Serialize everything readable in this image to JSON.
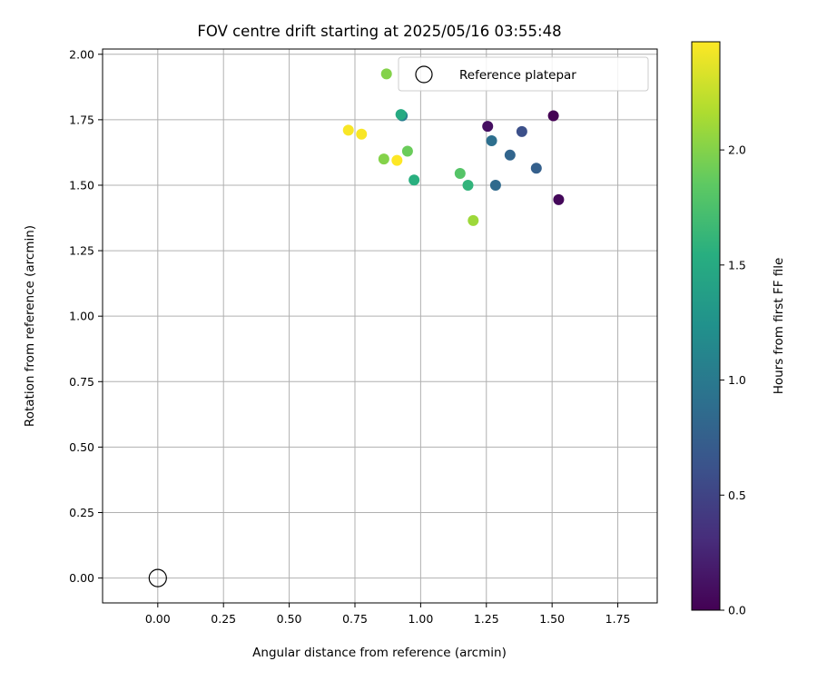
{
  "chart_data": {
    "type": "scatter",
    "title": "FOV centre drift starting at 2025/05/16 03:55:48",
    "xlabel": "Angular distance from reference (arcmin)",
    "ylabel": "Rotation from reference (arcmin)",
    "xlim": [
      -0.21,
      1.9
    ],
    "ylim": [
      -0.095,
      2.02
    ],
    "xticks": [
      "0.00",
      "0.25",
      "0.50",
      "0.75",
      "1.00",
      "1.25",
      "1.50",
      "1.75"
    ],
    "yticks": [
      "0.00",
      "0.25",
      "0.50",
      "0.75",
      "1.00",
      "1.25",
      "1.50",
      "1.75",
      "2.00"
    ],
    "grid": true,
    "legend": {
      "placement": "top-right",
      "entries": [
        "Reference platepar"
      ]
    },
    "reference_point": {
      "x": 0.0,
      "y": 0.0
    },
    "colorbar": {
      "label": "Hours from first FF file",
      "colormap": "viridis",
      "range": [
        0.0,
        2.47
      ],
      "ticks": [
        "0.0",
        "0.5",
        "1.0",
        "1.5",
        "2.0"
      ]
    },
    "points": [
      {
        "x": 1.505,
        "y": 1.765,
        "c": 0.0
      },
      {
        "x": 1.525,
        "y": 1.445,
        "c": 0.05
      },
      {
        "x": 1.255,
        "y": 1.725,
        "c": 0.1
      },
      {
        "x": 1.385,
        "y": 1.705,
        "c": 0.6
      },
      {
        "x": 1.44,
        "y": 1.565,
        "c": 0.75
      },
      {
        "x": 1.34,
        "y": 1.615,
        "c": 0.8
      },
      {
        "x": 1.285,
        "y": 1.5,
        "c": 0.85
      },
      {
        "x": 1.27,
        "y": 1.67,
        "c": 0.9
      },
      {
        "x": 0.93,
        "y": 1.765,
        "c": 1.05
      },
      {
        "x": 0.925,
        "y": 1.77,
        "c": 1.5
      },
      {
        "x": 0.975,
        "y": 1.52,
        "c": 1.55
      },
      {
        "x": 1.18,
        "y": 1.5,
        "c": 1.6
      },
      {
        "x": 1.15,
        "y": 1.545,
        "c": 1.8
      },
      {
        "x": 0.95,
        "y": 1.63,
        "c": 1.9
      },
      {
        "x": 0.86,
        "y": 1.6,
        "c": 2.0
      },
      {
        "x": 0.87,
        "y": 1.925,
        "c": 2.0
      },
      {
        "x": 1.2,
        "y": 1.365,
        "c": 2.1
      },
      {
        "x": 0.725,
        "y": 1.71,
        "c": 2.45
      },
      {
        "x": 0.775,
        "y": 1.695,
        "c": 2.45
      },
      {
        "x": 0.91,
        "y": 1.595,
        "c": 2.47
      }
    ]
  }
}
